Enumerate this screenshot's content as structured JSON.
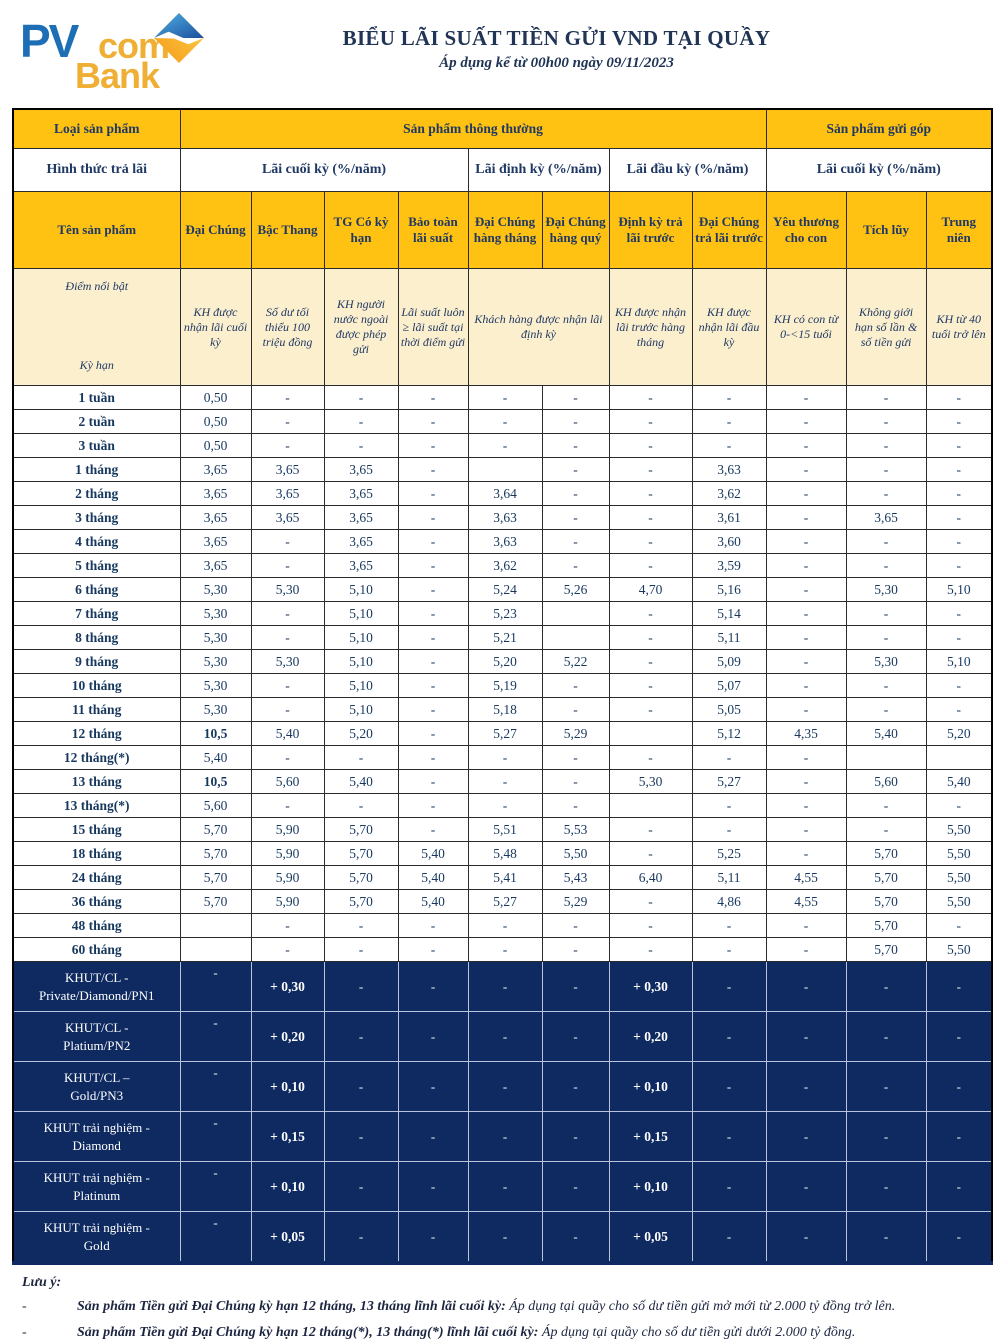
{
  "header": {
    "logo": {
      "pv": "PV",
      "com": "com",
      "bank": "Bank",
      "icon": "diamond-logo-icon"
    },
    "title": "BIỂU LÃI SUẤT TIỀN GỬI VND TẠI QUẦY",
    "subtitle": "Áp dụng kể từ 00h00 ngày 09/11/2023"
  },
  "colors": {
    "header_orange": "#FFC112",
    "highlight_cream": "#FBEFCE",
    "vip_navy": "#0E2A60",
    "text_navy": "#1F3864",
    "logo_blue": "#1D6FB5",
    "logo_gold": "#EFAF35"
  },
  "table": {
    "group_header": {
      "product_type_label": "Loại sản phẩm",
      "regular_label": "Sản phẩm thông thường",
      "installment_label": "Sản phẩm gửi góp"
    },
    "interest_form": {
      "label": "Hình thức trả lãi",
      "end_period": "Lãi cuối kỳ (%/năm)",
      "periodic": "Lãi định kỳ (%/năm)",
      "begin_period": "Lãi đầu kỳ (%/năm)",
      "installment_end": "Lãi cuối kỳ (%/năm)"
    },
    "product_header": {
      "name_label": "Tên sản phẩm",
      "columns": [
        "Đại Chúng",
        "Bậc Thang",
        "TG Có kỳ hạn",
        "Bảo toàn lãi suất",
        "Đại Chúng hàng tháng",
        "Đại Chúng hàng quý",
        "Định kỳ trả lãi trước",
        "Đại Chúng trả lãi trước",
        "Yêu thương cho con",
        "Tích lũy",
        "Trung niên"
      ]
    },
    "highlight_row": {
      "corner_top": "Điểm nổi bật",
      "corner_bottom": "Kỳ hạn",
      "cells": [
        {
          "text": "KH được nhận lãi cuối kỳ",
          "span": 1
        },
        {
          "text": "Số dư tối thiểu 100 triệu đồng",
          "span": 1
        },
        {
          "text": "KH người nước ngoài được phép gửi",
          "span": 1
        },
        {
          "text": "Lãi suất luôn ≥ lãi suất tại thời điểm gửi",
          "span": 1
        },
        {
          "text": "Khách hàng được nhận lãi định kỳ",
          "span": 2
        },
        {
          "text": "KH được nhận lãi trước hàng tháng",
          "span": 1
        },
        {
          "text": "KH được nhận lãi đầu kỳ",
          "span": 1
        },
        {
          "text": "KH có con từ 0-<15 tuổi",
          "span": 1
        },
        {
          "text": "Không giới hạn số lần & số tiền gửi",
          "span": 1
        },
        {
          "text": "KH từ 40 tuổi trở lên",
          "span": 1
        }
      ]
    },
    "rows": [
      {
        "term": "1 tuần",
        "values": [
          "0,50",
          "-",
          "-",
          "-",
          "-",
          "-",
          "-",
          "-",
          "-",
          "-",
          "-"
        ]
      },
      {
        "term": "2 tuần",
        "values": [
          "0,50",
          "-",
          "-",
          "-",
          "-",
          "-",
          "-",
          "-",
          "-",
          "-",
          "-"
        ]
      },
      {
        "term": "3 tuần",
        "values": [
          "0,50",
          "-",
          "-",
          "-",
          "-",
          "-",
          "-",
          "-",
          "-",
          "-",
          "-"
        ]
      },
      {
        "term": "1 tháng",
        "values": [
          "3,65",
          "3,65",
          "3,65",
          "-",
          "",
          "-",
          "-",
          "3,63",
          "-",
          "-",
          "-"
        ]
      },
      {
        "term": "2 tháng",
        "values": [
          "3,65",
          "3,65",
          "3,65",
          "-",
          "3,64",
          "-",
          "-",
          "3,62",
          "-",
          "-",
          "-"
        ]
      },
      {
        "term": "3 tháng",
        "values": [
          "3,65",
          "3,65",
          "3,65",
          "-",
          "3,63",
          "-",
          "-",
          "3,61",
          "-",
          "3,65",
          "-"
        ]
      },
      {
        "term": "4 tháng",
        "values": [
          "3,65",
          "-",
          "3,65",
          "-",
          "3,63",
          "-",
          "-",
          "3,60",
          "-",
          "-",
          "-"
        ]
      },
      {
        "term": "5 tháng",
        "values": [
          "3,65",
          "-",
          "3,65",
          "-",
          "3,62",
          "-",
          "-",
          "3,59",
          "-",
          "-",
          "-"
        ]
      },
      {
        "term": "6 tháng",
        "values": [
          "5,30",
          "5,30",
          "5,10",
          "-",
          "5,24",
          "5,26",
          "4,70",
          "5,16",
          "-",
          "5,30",
          "5,10"
        ]
      },
      {
        "term": "7 tháng",
        "values": [
          "5,30",
          "-",
          "5,10",
          "-",
          "5,23",
          "",
          "-",
          "5,14",
          "-",
          "-",
          "-"
        ]
      },
      {
        "term": "8 tháng",
        "values": [
          "5,30",
          "-",
          "5,10",
          "-",
          "5,21",
          "",
          "-",
          "5,11",
          "-",
          "-",
          "-"
        ]
      },
      {
        "term": "9 tháng",
        "values": [
          "5,30",
          "5,30",
          "5,10",
          "-",
          "5,20",
          "5,22",
          "-",
          "5,09",
          "-",
          "5,30",
          "5,10"
        ]
      },
      {
        "term": "10 tháng",
        "values": [
          "5,30",
          "-",
          "5,10",
          "-",
          "5,19",
          "-",
          "-",
          "5,07",
          "-",
          "-",
          "-"
        ]
      },
      {
        "term": "11 tháng",
        "values": [
          "5,30",
          "-",
          "5,10",
          "-",
          "5,18",
          "-",
          "-",
          "5,05",
          "-",
          "-",
          "-"
        ]
      },
      {
        "term": "12 tháng",
        "strong": true,
        "values": [
          "10,5",
          "5,40",
          "5,20",
          "-",
          "5,27",
          "5,29",
          "",
          "5,12",
          "4,35",
          "5,40",
          "5,20"
        ]
      },
      {
        "term": "12 tháng(*)",
        "values": [
          "5,40",
          "-",
          "-",
          "-",
          "-",
          "-",
          "-",
          "-",
          "-",
          "",
          ""
        ]
      },
      {
        "term": "13 tháng",
        "strong": true,
        "values": [
          "10,5",
          "5,60",
          "5,40",
          "-",
          "-",
          "-",
          "5,30",
          "5,27",
          "-",
          "5,60",
          "5,40"
        ]
      },
      {
        "term": "13 tháng(*)",
        "values": [
          "5,60",
          "-",
          "-",
          "-",
          "-",
          "-",
          "",
          "-",
          "-",
          "-",
          "-"
        ]
      },
      {
        "term": "15 tháng",
        "values": [
          "5,70",
          "5,90",
          "5,70",
          "-",
          "5,51",
          "5,53",
          "-",
          "-",
          "-",
          "-",
          "5,50"
        ]
      },
      {
        "term": "18 tháng",
        "values": [
          "5,70",
          "5,90",
          "5,70",
          "5,40",
          "5,48",
          "5,50",
          "-",
          "5,25",
          "-",
          "5,70",
          "5,50"
        ]
      },
      {
        "term": "24 tháng",
        "values": [
          "5,70",
          "5,90",
          "5,70",
          "5,40",
          "5,41",
          "5,43",
          "6,40",
          "5,11",
          "4,55",
          "5,70",
          "5,50"
        ]
      },
      {
        "term": "36 tháng",
        "values": [
          "5,70",
          "5,90",
          "5,70",
          "5,40",
          "5,27",
          "5,29",
          "-",
          "4,86",
          "4,55",
          "5,70",
          "5,50"
        ]
      },
      {
        "term": "48 tháng",
        "values": [
          "",
          "-",
          "-",
          "-",
          "-",
          "-",
          "-",
          "-",
          "-",
          "5,70",
          "-"
        ]
      },
      {
        "term": "60 tháng",
        "values": [
          "",
          "-",
          "-",
          "-",
          "-",
          "-",
          "-",
          "-",
          "-",
          "5,70",
          "5,50"
        ]
      }
    ],
    "vip_rows": [
      {
        "label": "KHUT/CL -\nPrivate/Diamond/PN1",
        "values": [
          "-",
          "+ 0,30",
          "-",
          "-",
          "-",
          "-",
          "+ 0,30",
          "-",
          "-",
          "-",
          "-"
        ]
      },
      {
        "label": "KHUT/CL -\nPlatium/PN2",
        "values": [
          "-",
          "+ 0,20",
          "-",
          "-",
          "-",
          "-",
          "+ 0,20",
          "-",
          "-",
          "-",
          "-"
        ]
      },
      {
        "label": "KHUT/CL –\nGold/PN3",
        "values": [
          "-",
          "+ 0,10",
          "-",
          "-",
          "-",
          "-",
          "+ 0,10",
          "-",
          "-",
          "-",
          "-"
        ]
      },
      {
        "label": "KHUT trải nghiệm -\nDiamond",
        "values": [
          "-",
          "+ 0,15",
          "-",
          "-",
          "-",
          "-",
          "+ 0,15",
          "-",
          "-",
          "-",
          "-"
        ]
      },
      {
        "label": "KHUT trải nghiệm -\nPlatinum",
        "values": [
          "-",
          "+ 0,10",
          "-",
          "-",
          "-",
          "-",
          "+ 0,10",
          "-",
          "-",
          "-",
          "-"
        ]
      },
      {
        "label": "KHUT trải nghiệm -\nGold",
        "values": [
          "-",
          "+ 0,05",
          "-",
          "-",
          "-",
          "-",
          "+ 0,05",
          "-",
          "-",
          "-",
          "-"
        ]
      }
    ]
  },
  "notes": {
    "title": "Lưu ý:",
    "dash": "-",
    "items": [
      {
        "bold": "Sản phẩm Tiền gửi Đại Chúng kỳ hạn 12 tháng, 13 tháng lĩnh lãi cuối kỳ:",
        "rest": " Áp dụng tại quầy cho số dư tiền gửi mở mới từ 2.000 tỷ đồng trở lên."
      },
      {
        "bold": "Sản phẩm Tiền gửi Đại Chúng kỳ hạn 12 tháng(*), 13 tháng(*) lĩnh lãi cuối kỳ:",
        "rest": " Áp dụng tại quầy cho số dư tiền gửi dưới 2.000 tỷ đồng."
      }
    ]
  }
}
